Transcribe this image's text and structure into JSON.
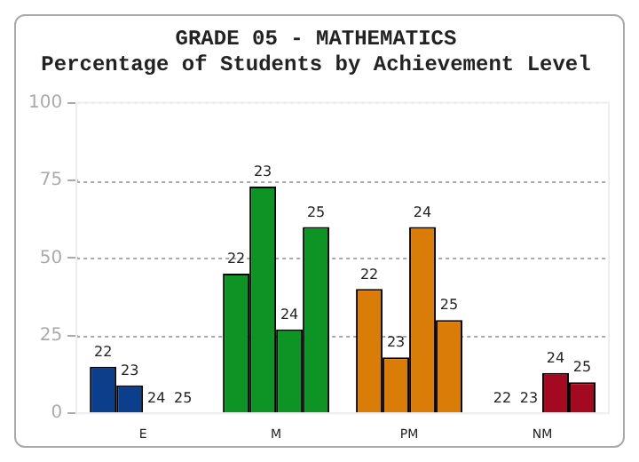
{
  "chart_data": {
    "type": "bar",
    "title": "GRADE 05 - MATHEMATICS",
    "subtitle": "Percentage of Students by Achievement Level",
    "categories": [
      "E",
      "M",
      "PM",
      "NM"
    ],
    "series": [
      {
        "name": "22",
        "colors": [
          "#0b3f8c",
          "#0d9424",
          "#d97c08",
          "#a30a22"
        ],
        "values": [
          15,
          45,
          40,
          0
        ]
      },
      {
        "name": "23",
        "colors": [
          "#0b3f8c",
          "#0d9424",
          "#d97c08",
          "#a30a22"
        ],
        "values": [
          9,
          73,
          18,
          0
        ]
      },
      {
        "name": "24",
        "colors": [
          "#0b3f8c",
          "#0d9424",
          "#d97c08",
          "#a30a22"
        ],
        "values": [
          0,
          27,
          60,
          13
        ]
      },
      {
        "name": "25",
        "colors": [
          "#0b3f8c",
          "#0d9424",
          "#d97c08",
          "#a30a22"
        ],
        "values": [
          0,
          60,
          30,
          10
        ]
      }
    ],
    "ylim": [
      0,
      100
    ],
    "yticks": [
      0,
      25,
      50,
      75,
      100
    ],
    "grid": "y",
    "legend": false
  }
}
